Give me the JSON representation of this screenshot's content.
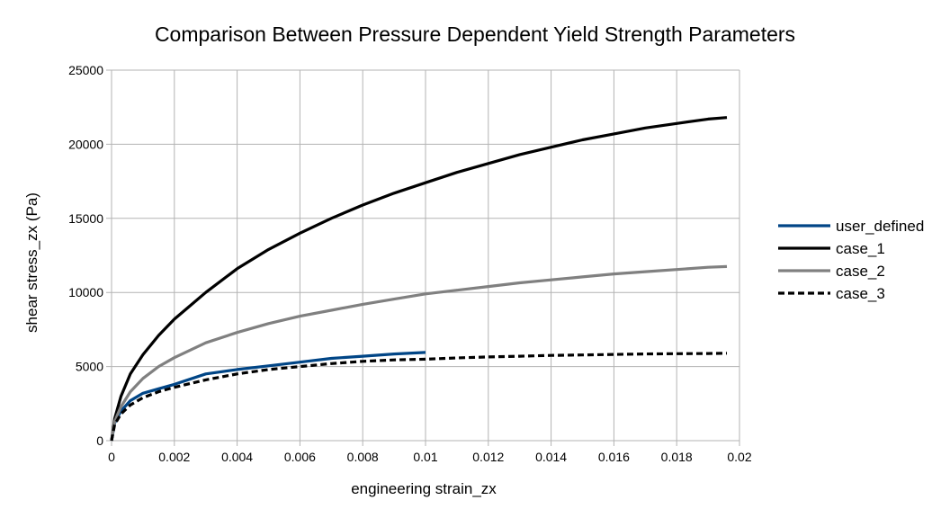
{
  "chart_data": {
    "type": "line",
    "title": "Comparison Between Pressure Dependent Yield Strength Parameters",
    "xlabel": "engineering strain_zx",
    "ylabel": "shear stress_zx (Pa)",
    "xlim": [
      0,
      0.02
    ],
    "ylim": [
      0,
      25000
    ],
    "x_ticks": [
      "0",
      "0.002",
      "0.004",
      "0.006",
      "0.008",
      "0.01",
      "0.012",
      "0.014",
      "0.016",
      "0.018",
      "0.02"
    ],
    "y_ticks": [
      "0",
      "5000",
      "10000",
      "15000",
      "20000",
      "25000"
    ],
    "grid": true,
    "legend_position": "right",
    "series": [
      {
        "name": "user_defined",
        "color": "#004586",
        "dash": "solid",
        "points": [
          [
            0,
            0
          ],
          [
            0.0001,
            1200
          ],
          [
            0.0003,
            2000
          ],
          [
            0.0006,
            2700
          ],
          [
            0.001,
            3200
          ],
          [
            0.0015,
            3500
          ],
          [
            0.002,
            3800
          ],
          [
            0.003,
            4500
          ],
          [
            0.004,
            4800
          ],
          [
            0.005,
            5050
          ],
          [
            0.006,
            5300
          ],
          [
            0.007,
            5550
          ],
          [
            0.008,
            5700
          ],
          [
            0.009,
            5850
          ],
          [
            0.01,
            5950
          ]
        ]
      },
      {
        "name": "case_1",
        "color": "#000000",
        "dash": "solid",
        "points": [
          [
            0,
            0
          ],
          [
            0.0001,
            1500
          ],
          [
            0.0003,
            3000
          ],
          [
            0.0006,
            4500
          ],
          [
            0.001,
            5800
          ],
          [
            0.0015,
            7100
          ],
          [
            0.002,
            8200
          ],
          [
            0.0025,
            9100
          ],
          [
            0.003,
            10000
          ],
          [
            0.004,
            11600
          ],
          [
            0.005,
            12900
          ],
          [
            0.006,
            14000
          ],
          [
            0.007,
            15000
          ],
          [
            0.008,
            15900
          ],
          [
            0.009,
            16700
          ],
          [
            0.01,
            17400
          ],
          [
            0.011,
            18100
          ],
          [
            0.012,
            18700
          ],
          [
            0.013,
            19300
          ],
          [
            0.014,
            19800
          ],
          [
            0.015,
            20300
          ],
          [
            0.016,
            20700
          ],
          [
            0.017,
            21100
          ],
          [
            0.018,
            21400
          ],
          [
            0.019,
            21700
          ],
          [
            0.0196,
            21800
          ]
        ]
      },
      {
        "name": "case_2",
        "color": "#808080",
        "dash": "solid",
        "points": [
          [
            0,
            0
          ],
          [
            0.0001,
            1300
          ],
          [
            0.0003,
            2300
          ],
          [
            0.0006,
            3300
          ],
          [
            0.001,
            4200
          ],
          [
            0.0015,
            5000
          ],
          [
            0.002,
            5600
          ],
          [
            0.003,
            6600
          ],
          [
            0.004,
            7300
          ],
          [
            0.005,
            7900
          ],
          [
            0.006,
            8400
          ],
          [
            0.007,
            8800
          ],
          [
            0.008,
            9200
          ],
          [
            0.009,
            9550
          ],
          [
            0.01,
            9900
          ],
          [
            0.011,
            10150
          ],
          [
            0.012,
            10400
          ],
          [
            0.013,
            10650
          ],
          [
            0.014,
            10850
          ],
          [
            0.015,
            11050
          ],
          [
            0.016,
            11250
          ],
          [
            0.017,
            11400
          ],
          [
            0.018,
            11550
          ],
          [
            0.019,
            11700
          ],
          [
            0.0196,
            11750
          ]
        ]
      },
      {
        "name": "case_3",
        "color": "#000000",
        "dash": "dashed",
        "points": [
          [
            0,
            0
          ],
          [
            0.0001,
            1100
          ],
          [
            0.0003,
            1800
          ],
          [
            0.0006,
            2400
          ],
          [
            0.001,
            2900
          ],
          [
            0.0015,
            3300
          ],
          [
            0.002,
            3600
          ],
          [
            0.003,
            4100
          ],
          [
            0.004,
            4500
          ],
          [
            0.005,
            4800
          ],
          [
            0.006,
            5000
          ],
          [
            0.007,
            5200
          ],
          [
            0.008,
            5350
          ],
          [
            0.009,
            5450
          ],
          [
            0.01,
            5500
          ],
          [
            0.011,
            5580
          ],
          [
            0.012,
            5650
          ],
          [
            0.013,
            5700
          ],
          [
            0.014,
            5750
          ],
          [
            0.015,
            5780
          ],
          [
            0.016,
            5820
          ],
          [
            0.017,
            5850
          ],
          [
            0.018,
            5870
          ],
          [
            0.019,
            5880
          ],
          [
            0.0196,
            5900
          ]
        ]
      }
    ]
  }
}
